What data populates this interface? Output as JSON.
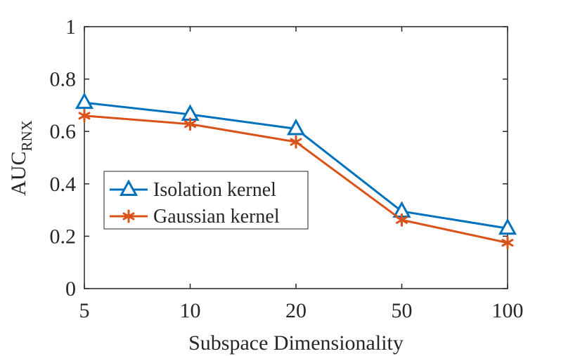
{
  "chart_data": {
    "type": "line",
    "categories": [
      "5",
      "10",
      "20",
      "50",
      "100"
    ],
    "xlabel": "Subspace Dimensionality",
    "ylabel": "AUC",
    "ylabel_subscript": "RNX",
    "ylim": [
      0,
      1
    ],
    "yticks": [
      "0",
      "0.2",
      "0.4",
      "0.6",
      "0.8",
      "1"
    ],
    "grid": false,
    "legend_position": "center-left",
    "series": [
      {
        "name": "Isolation kernel",
        "color": "#0072BD",
        "marker": "triangle",
        "values": [
          0.71,
          0.665,
          0.61,
          0.295,
          0.23
        ]
      },
      {
        "name": "Gaussian kernel",
        "color": "#D95319",
        "marker": "asterisk",
        "values": [
          0.66,
          0.628,
          0.56,
          0.262,
          0.175
        ]
      }
    ]
  }
}
